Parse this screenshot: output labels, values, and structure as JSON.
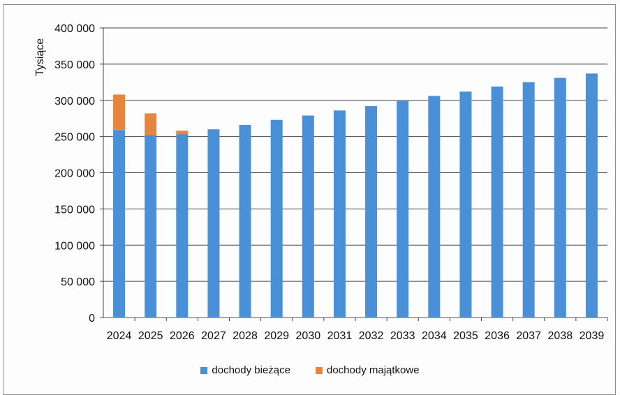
{
  "chart_data": {
    "type": "bar",
    "stacked": true,
    "ylabel": "Tysiące",
    "ylim": [
      0,
      400000
    ],
    "yticks": [
      0,
      50000,
      100000,
      150000,
      200000,
      250000,
      300000,
      350000,
      400000
    ],
    "ytick_labels": [
      "0",
      "50 000",
      "100 000",
      "150 000",
      "200 000",
      "250 000",
      "300 000",
      "350 000",
      "400 000"
    ],
    "grid": true,
    "legend_position": "bottom",
    "categories": [
      "2024",
      "2025",
      "2026",
      "2027",
      "2028",
      "2029",
      "2030",
      "2031",
      "2032",
      "2033",
      "2034",
      "2035",
      "2036",
      "2037",
      "2038",
      "2039"
    ],
    "series": [
      {
        "name": "dochody bieżące",
        "color": "#4a90d9",
        "values": [
          259000,
          252000,
          253000,
          260000,
          266000,
          273000,
          279000,
          286000,
          292000,
          299000,
          306000,
          312000,
          319000,
          325000,
          331000,
          337000
        ]
      },
      {
        "name": "dochody majątkowe",
        "color": "#e8853c",
        "values": [
          49000,
          30000,
          5000,
          0,
          0,
          0,
          0,
          0,
          0,
          0,
          0,
          0,
          0,
          0,
          0,
          0
        ]
      }
    ]
  }
}
